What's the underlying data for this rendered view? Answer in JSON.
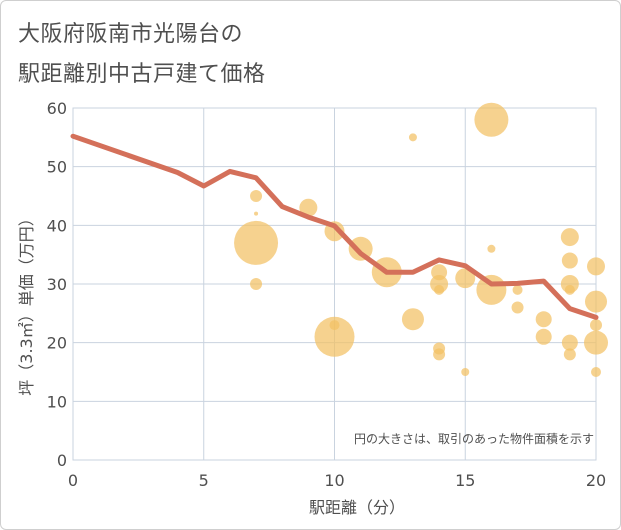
{
  "title_lines": [
    "大阪府阪南市光陽台の",
    "駅距離別中古戸建て価格"
  ],
  "chart_data": {
    "type": "scatter",
    "xlabel": "駅距離（分）",
    "ylabel": "坪（3.3㎡）単価（万円）",
    "xlim": [
      0,
      20
    ],
    "ylim": [
      0,
      60
    ],
    "xticks": [
      0,
      5,
      10,
      15,
      20
    ],
    "yticks": [
      0,
      10,
      20,
      30,
      40,
      50,
      60
    ],
    "grid": true,
    "note": "円の大きさは、取引のあった物件面積を示す",
    "colors": {
      "bubble": "#f2c064",
      "line": "#d4705a",
      "grid": "#c9d3df",
      "axis_text": "#4f4f4f"
    },
    "bubbles": [
      {
        "x": 7,
        "y": 45,
        "r": 6
      },
      {
        "x": 7,
        "y": 42,
        "r": 2
      },
      {
        "x": 7,
        "y": 37,
        "r": 22
      },
      {
        "x": 7,
        "y": 30,
        "r": 6
      },
      {
        "x": 9,
        "y": 43,
        "r": 9
      },
      {
        "x": 10,
        "y": 39,
        "r": 10
      },
      {
        "x": 10,
        "y": 23,
        "r": 5
      },
      {
        "x": 10,
        "y": 21,
        "r": 20
      },
      {
        "x": 11,
        "y": 36,
        "r": 12
      },
      {
        "x": 12,
        "y": 32,
        "r": 15
      },
      {
        "x": 13,
        "y": 55,
        "r": 4
      },
      {
        "x": 13,
        "y": 24,
        "r": 11
      },
      {
        "x": 14,
        "y": 32,
        "r": 8
      },
      {
        "x": 14,
        "y": 30,
        "r": 9
      },
      {
        "x": 14,
        "y": 29,
        "r": 5
      },
      {
        "x": 14,
        "y": 19,
        "r": 6
      },
      {
        "x": 14,
        "y": 18,
        "r": 6
      },
      {
        "x": 15,
        "y": 31,
        "r": 10
      },
      {
        "x": 15,
        "y": 15,
        "r": 4
      },
      {
        "x": 16,
        "y": 58,
        "r": 17
      },
      {
        "x": 16,
        "y": 36,
        "r": 4
      },
      {
        "x": 16,
        "y": 29,
        "r": 15
      },
      {
        "x": 17,
        "y": 29,
        "r": 5
      },
      {
        "x": 17,
        "y": 26,
        "r": 6
      },
      {
        "x": 18,
        "y": 24,
        "r": 8
      },
      {
        "x": 18,
        "y": 21,
        "r": 8
      },
      {
        "x": 19,
        "y": 38,
        "r": 9
      },
      {
        "x": 19,
        "y": 34,
        "r": 8
      },
      {
        "x": 19,
        "y": 30,
        "r": 9
      },
      {
        "x": 19,
        "y": 29,
        "r": 5
      },
      {
        "x": 19,
        "y": 20,
        "r": 8
      },
      {
        "x": 19,
        "y": 18,
        "r": 6
      },
      {
        "x": 20,
        "y": 33,
        "r": 9
      },
      {
        "x": 20,
        "y": 27,
        "r": 11
      },
      {
        "x": 20,
        "y": 23,
        "r": 6
      },
      {
        "x": 20,
        "y": 20,
        "r": 12
      },
      {
        "x": 20,
        "y": 15,
        "r": 5
      }
    ],
    "line": {
      "x": [
        0,
        4,
        5,
        6,
        7,
        8,
        9,
        10,
        11,
        12,
        13,
        14,
        15,
        16,
        17,
        18,
        19,
        20
      ],
      "y": [
        55.2,
        49,
        46.7,
        49.2,
        48.1,
        43.2,
        41.4,
        39.9,
        35.2,
        32,
        32,
        34.1,
        33.1,
        30,
        30.1,
        30.5,
        25.8,
        24.3
      ]
    }
  }
}
